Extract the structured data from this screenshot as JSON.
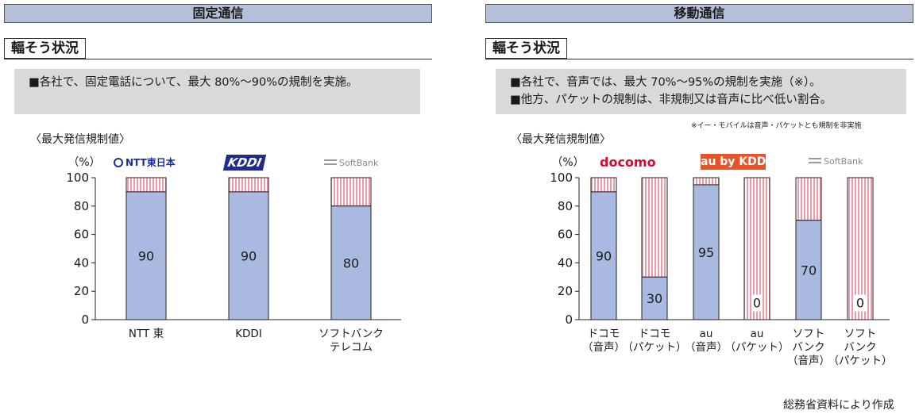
{
  "panels": [
    {
      "header": "固定通信",
      "status_tag": "輻そう状況",
      "notes": [
        "■各社で、固定電話について、最大 80%〜90%の規制を実施。"
      ],
      "footnote": "",
      "subtitle": "〈最大発信規制値〉"
    },
    {
      "header": "移動通信",
      "status_tag": "輻そう状況",
      "notes": [
        "■各社で、音声では、最大 70%〜95%の規制を実施（※）。",
        "■他方、パケットの規制は、非規制又は音声に比べ低い割合。"
      ],
      "footnote": "※イー・モバイルは音声・パケットとも規制を非実施",
      "subtitle": "〈最大発信規制値〉"
    }
  ],
  "logos": {
    "ntt": "NTT東日本",
    "kddi": "KDDI",
    "softbank": "SoftBank",
    "docomo": "docomo",
    "au": "au by KDDI"
  },
  "source": "総務省資料により作成",
  "colors": {
    "bar": "#aab9df",
    "stripe": "#f09aa6",
    "edge": "#222222"
  },
  "chart_data": [
    {
      "type": "bar",
      "stacked": true,
      "unit_label": "（%）",
      "ylim": [
        0,
        100
      ],
      "yticks": [
        0,
        20,
        40,
        60,
        80,
        100
      ],
      "categories": [
        [
          "NTT 東"
        ],
        [
          "KDDI"
        ],
        [
          "ソフトバンク",
          "テレコム"
        ]
      ],
      "values": [
        90,
        90,
        80
      ],
      "value_labels": [
        "90",
        "90",
        "80"
      ]
    },
    {
      "type": "bar",
      "stacked": true,
      "unit_label": "（%）",
      "ylim": [
        0,
        100
      ],
      "yticks": [
        0,
        20,
        40,
        60,
        80,
        100
      ],
      "categories": [
        [
          "ドコモ",
          "（音声）"
        ],
        [
          "ドコモ",
          "（パケット）"
        ],
        [
          "au",
          "（音声）"
        ],
        [
          "au",
          "（パケット）"
        ],
        [
          "ソフト",
          "バンク",
          "（音声）"
        ],
        [
          "ソフト",
          "バンク",
          "（パケット）"
        ]
      ],
      "values": [
        90,
        30,
        95,
        0,
        70,
        0
      ],
      "value_labels": [
        "90",
        "30",
        "95",
        "0",
        "70",
        "0"
      ]
    }
  ]
}
